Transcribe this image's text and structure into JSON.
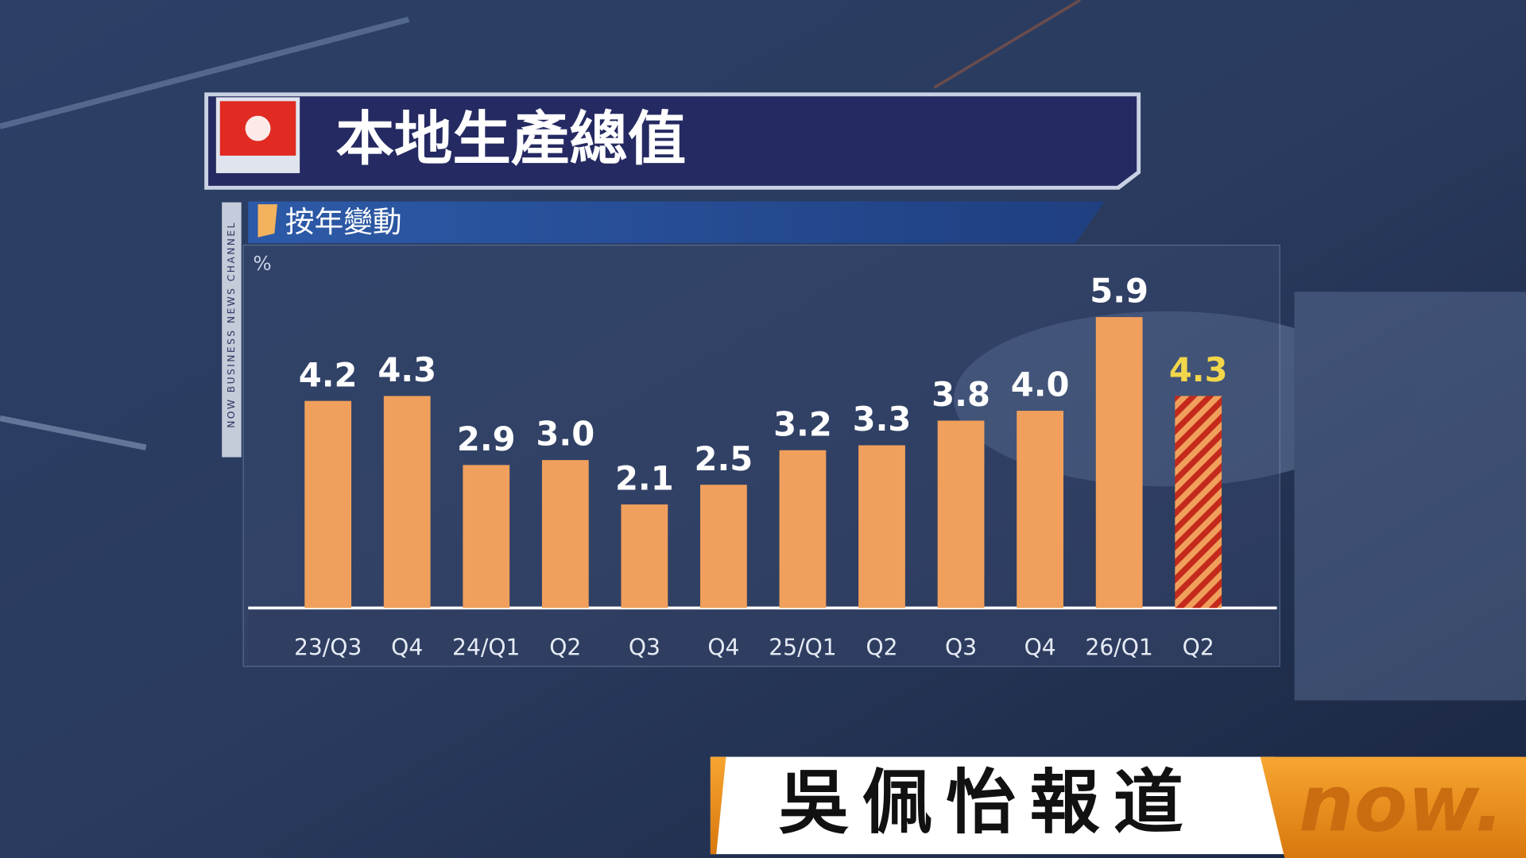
{
  "chart_data": {
    "type": "bar",
    "title": "本地生產總值",
    "subtitle": "按年變動",
    "y_label": "%",
    "categories": [
      "23/Q3",
      "Q4",
      "24/Q1",
      "Q2",
      "Q3",
      "Q4",
      "25/Q1",
      "Q2",
      "Q3",
      "Q4",
      "26/Q1",
      "Q2"
    ],
    "values": [
      4.2,
      4.3,
      2.9,
      3,
      2.1,
      2.5,
      3.2,
      3.3,
      3.8,
      4,
      5.9,
      4.3
    ],
    "value_labels": [
      "4.2",
      "4.3",
      "2.9",
      "3.0",
      "2.1",
      "2.5",
      "3.2",
      "3.3",
      "3.8",
      "4.0",
      "5.9",
      "4.3"
    ],
    "bar_styles": [
      "solid",
      "solid",
      "solid",
      "solid",
      "solid",
      "solid",
      "solid",
      "solid",
      "solid",
      "solid",
      "solid",
      "hatched"
    ],
    "color": "#f0a05c",
    "hatch_colors": [
      "#c42a1c",
      "#f0a05c"
    ],
    "label_color": "#ffffff",
    "highlight_label_color": "#f2d64a",
    "ylim": [
      0,
      7.3
    ]
  },
  "channel_tag": "NOW BUSINESS NEWS CHANNEL",
  "reporter_caption": "吳佩怡報道",
  "logo": "now."
}
